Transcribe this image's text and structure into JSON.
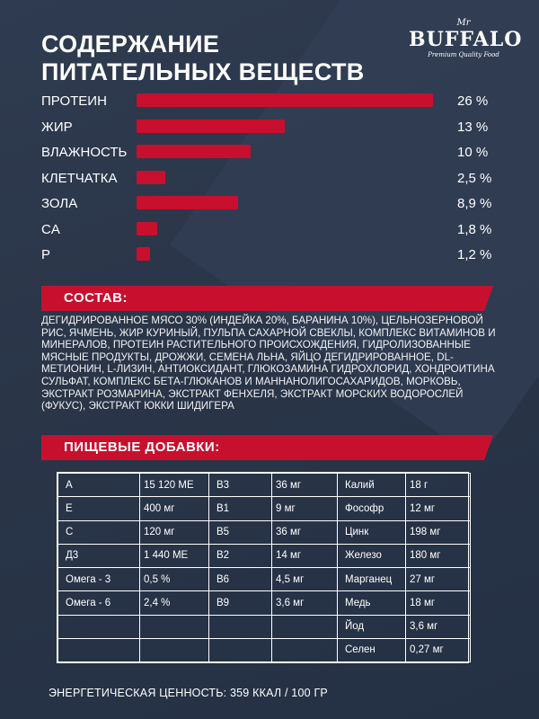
{
  "title": {
    "line1": "СОДЕРЖАНИЕ",
    "line2": "ПИТАТЕЛЬНЫХ ВЕЩЕСТВ"
  },
  "logo": {
    "mr": "Mr",
    "brand": "BUFFALO",
    "tagline": "Premium Quality Food"
  },
  "accent_color": "#c8102e",
  "nutrients": [
    {
      "label": "ПРОТЕИН",
      "value": "26 %",
      "amount": 26
    },
    {
      "label": "ЖИР",
      "value": "13 %",
      "amount": 13
    },
    {
      "label": "ВЛАЖНОСТЬ",
      "value": "10 %",
      "amount": 10
    },
    {
      "label": "КЛЕТЧАТКА",
      "value": "2,5 %",
      "amount": 2.5
    },
    {
      "label": "ЗОЛА",
      "value": "8,9 %",
      "amount": 8.9
    },
    {
      "label": "CA",
      "value": "1,8 %",
      "amount": 1.8
    },
    {
      "label": "P",
      "value": "1,2 %",
      "amount": 1.2
    }
  ],
  "composition_heading": "СОСТАВ:",
  "composition_text": "ДЕГИДРИРОВАННОЕ МЯСО 30% (ИНДЕЙКА 20%, БАРАНИНА 10%), ЦЕЛЬНОЗЕРНОВОЙ РИС, ЯЧМЕНЬ, ЖИР КУРИНЫЙ, ПУЛЬПА САХАРНОЙ СВЕКЛЫ, КОМПЛЕКС ВИТАМИНОВ И МИНЕРАЛОВ, ПРОТЕИН РАСТИТЕЛЬНОГО ПРОИСХОЖДЕНИЯ, ГИДРОЛИЗОВАННЫЕ МЯСНЫЕ ПРОДУКТЫ, ДРОЖЖИ, СЕМЕНА ЛЬНА, ЯЙЦО ДЕГИДРИРОВАННОЕ, DL-МЕТИОНИН, L-ЛИЗИН, АНТИОКСИДАНТ, ГЛЮКОЗАМИНА ГИДРОХЛОРИД, ХОНДРОИТИНА СУЛЬФАТ, КОМПЛЕКС БЕТА-ГЛЮКАНОВ И МАННАНОЛИГОСАХАРИДОВ, МОРКОВЬ, ЭКСТРАКТ РОЗМАРИНА, ЭКСТРАКТ ФЕНХЕЛЯ, ЭКСТРАКТ МОРСКИХ ВОДОРОСЛЕЙ (ФУКУС), ЭКСТРАКТ ЮККИ ШИДИГЕРА",
  "additives_heading": "ПИЩЕВЫЕ ДОБАВКИ:",
  "additives": [
    [
      "A",
      "15 120 ME",
      "B3",
      "36 мг",
      "Калий",
      "18 г"
    ],
    [
      "E",
      "400 мг",
      "B1",
      "9 мг",
      "Фософр",
      "12 мг"
    ],
    [
      "C",
      "120 мг",
      "B5",
      "36 мг",
      "Цинк",
      "198 мг"
    ],
    [
      "Д3",
      "1 440 ME",
      "B2",
      "14 мг",
      "Железо",
      "180 мг"
    ],
    [
      "Омега - 3",
      "0,5 %",
      "B6",
      "4,5 мг",
      "Марганец",
      "27 мг"
    ],
    [
      "Омега - 6",
      "2,4 %",
      "B9",
      "3,6 мг",
      "Медь",
      "18 мг"
    ],
    [
      "",
      "",
      "",
      "",
      "Йод",
      "3,6 мг"
    ],
    [
      "",
      "",
      "",
      "",
      "Селен",
      "0,27 мг"
    ]
  ],
  "energy": "ЭНЕРГЕТИЧЕСКАЯ ЦЕННОСТЬ: 359 ККАЛ / 100 ГР"
}
